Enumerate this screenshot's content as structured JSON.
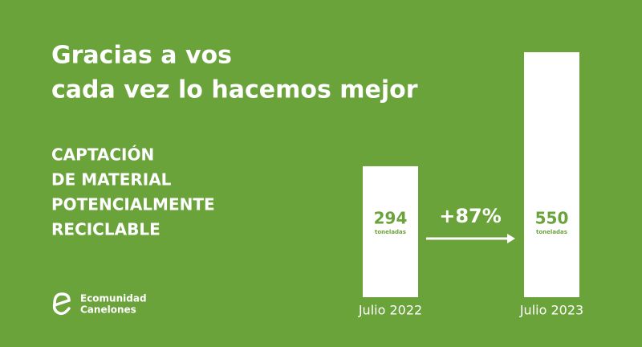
{
  "chart_data": {
    "type": "bar",
    "title": [
      "Gracias a vos",
      "cada vez lo hacemos mejor"
    ],
    "subtitle": [
      "CAPTACIÓN",
      "DE MATERIAL",
      "POTENCIALMENTE",
      "RECICLABLE"
    ],
    "categories": [
      "Julio 2022",
      "Julio 2023"
    ],
    "values": [
      294,
      550
    ],
    "unit": "toneladas",
    "annotation": "+87%",
    "color": "#ffffff",
    "background": "#6aa33a",
    "brand": [
      "Ecomunidad",
      "Canelones"
    ]
  }
}
